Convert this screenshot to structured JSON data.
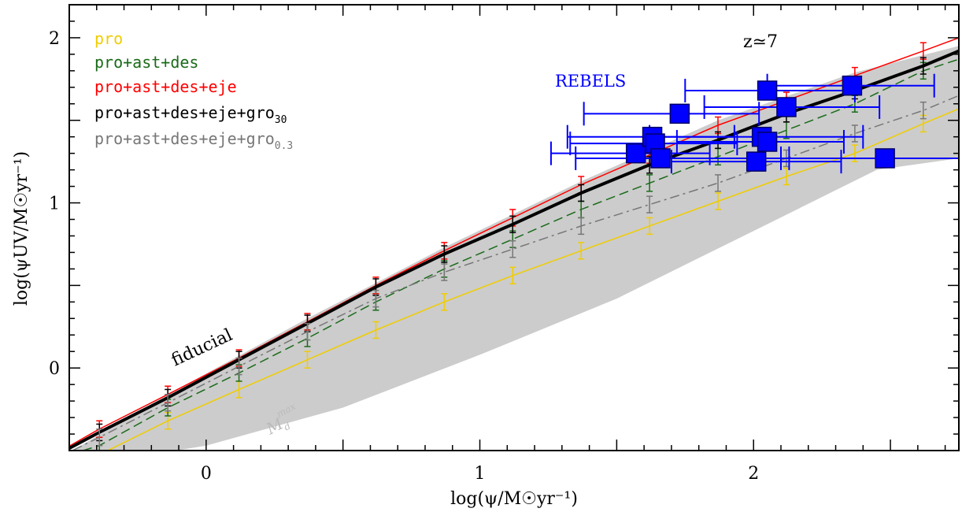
{
  "chart_data": {
    "type": "line",
    "xlabel": "log(ψ/M☉yr⁻¹)",
    "ylabel": "log(ψUV/M☉yr⁻¹)",
    "xlim": [
      -0.5,
      2.75
    ],
    "ylim": [
      -0.5,
      2.2
    ],
    "x_ticks": [
      0,
      1,
      2
    ],
    "x_tick_labels": [
      "0",
      "1",
      "2"
    ],
    "y_ticks": [
      0,
      1,
      2
    ],
    "y_tick_labels": [
      "0",
      "1",
      "2"
    ],
    "grid": false,
    "legend_position": "top-left",
    "legend": [
      {
        "text": "pro",
        "color": "#f0cd00"
      },
      {
        "text": "pro+ast+des",
        "color": "#1a6b1a"
      },
      {
        "text": "pro+ast+des+eje",
        "color": "#ff0000"
      },
      {
        "text": "pro+ast+des+eje+gro",
        "sub": "30",
        "color": "#000000"
      },
      {
        "text": "pro+ast+des+eje+gro",
        "sub": "0.3",
        "color": "#777777"
      }
    ],
    "annotations": {
      "redshift": "z≃7",
      "rebels": "REBELS",
      "fiducial": "fiducial",
      "mdmax_main": "M",
      "mdmax_sub": "d",
      "mdmax_sup": "max"
    },
    "shaded_band": {
      "color": "#cccccc",
      "upper": [
        [
          -0.55,
          -0.56
        ],
        [
          -0.14,
          -0.16
        ],
        [
          0.37,
          0.3
        ],
        [
          0.87,
          0.73
        ],
        [
          1.37,
          1.13
        ],
        [
          1.87,
          1.5
        ],
        [
          2.37,
          1.79
        ],
        [
          2.75,
          1.95
        ]
      ],
      "lower": [
        [
          -0.55,
          -0.62
        ],
        [
          0.0,
          -0.47
        ],
        [
          0.5,
          -0.24
        ],
        [
          1.0,
          0.08
        ],
        [
          1.5,
          0.42
        ],
        [
          2.0,
          0.83
        ],
        [
          2.45,
          1.2
        ],
        [
          2.75,
          1.27
        ]
      ]
    },
    "series": [
      {
        "name": "pro",
        "color": "#f0cd00",
        "dash": "solid",
        "width": 1.5,
        "x": [
          -0.55,
          -0.36,
          -0.14,
          0.12,
          0.37,
          0.62,
          0.87,
          1.12,
          1.37,
          1.62,
          1.87,
          2.12,
          2.37,
          2.62,
          2.75
        ],
        "y": [
          -0.62,
          -0.5,
          -0.32,
          -0.13,
          0.05,
          0.23,
          0.4,
          0.56,
          0.71,
          0.86,
          1.01,
          1.16,
          1.3,
          1.48,
          1.57
        ],
        "error_x": [
          -0.14,
          0.12,
          0.37,
          0.62,
          0.87,
          1.12,
          1.37,
          1.62,
          1.87,
          2.12,
          2.37,
          2.62
        ],
        "error_y": [
          -0.32,
          -0.13,
          0.05,
          0.23,
          0.4,
          0.56,
          0.71,
          0.86,
          1.01,
          1.16,
          1.3,
          1.48
        ],
        "error_size": 0.05
      },
      {
        "name": "pro+ast+des",
        "color": "#1a6b1a",
        "dash": "dashed",
        "width": 1.5,
        "x": [
          -0.55,
          -0.39,
          -0.14,
          0.12,
          0.37,
          0.62,
          0.87,
          1.12,
          1.37,
          1.62,
          1.87,
          2.12,
          2.37,
          2.62,
          2.75
        ],
        "y": [
          -0.55,
          -0.47,
          -0.24,
          -0.03,
          0.18,
          0.4,
          0.6,
          0.78,
          0.96,
          1.12,
          1.28,
          1.44,
          1.6,
          1.8,
          1.87
        ],
        "error_x": [
          -0.39,
          -0.14,
          0.12,
          0.37,
          0.62,
          0.87,
          1.12,
          1.37,
          1.62,
          1.87,
          2.12,
          2.37,
          2.62
        ],
        "error_y": [
          -0.47,
          -0.24,
          -0.03,
          0.18,
          0.4,
          0.6,
          0.78,
          0.96,
          1.12,
          1.28,
          1.44,
          1.6,
          1.8
        ],
        "error_size": 0.05
      },
      {
        "name": "pro+ast+des+eje",
        "color": "#ff0000",
        "dash": "solid",
        "width": 1.5,
        "x": [
          -0.55,
          -0.39,
          -0.14,
          0.12,
          0.37,
          0.62,
          0.87,
          1.12,
          1.37,
          1.62,
          1.87,
          2.12,
          2.37,
          2.62,
          2.75
        ],
        "y": [
          -0.52,
          -0.37,
          -0.16,
          0.06,
          0.28,
          0.5,
          0.71,
          0.91,
          1.11,
          1.29,
          1.47,
          1.62,
          1.77,
          1.92,
          2.0
        ],
        "error_x": [
          -0.39,
          -0.14,
          0.12,
          0.37,
          0.62,
          0.87,
          1.12,
          1.37,
          1.62,
          1.87,
          2.12,
          2.37,
          2.62
        ],
        "error_y": [
          -0.37,
          -0.16,
          0.06,
          0.28,
          0.5,
          0.71,
          0.91,
          1.11,
          1.29,
          1.47,
          1.62,
          1.77,
          1.92
        ],
        "error_size": 0.05
      },
      {
        "name": "pro+ast+des+eje+gro30",
        "color": "#000000",
        "dash": "solid",
        "width": 4,
        "x": [
          -0.55,
          -0.39,
          -0.14,
          0.12,
          0.37,
          0.62,
          0.87,
          1.12,
          1.37,
          1.62,
          1.87,
          2.12,
          2.37,
          2.62,
          2.75
        ],
        "y": [
          -0.53,
          -0.39,
          -0.18,
          0.05,
          0.27,
          0.49,
          0.69,
          0.87,
          1.06,
          1.23,
          1.38,
          1.54,
          1.68,
          1.83,
          1.92
        ],
        "error_x": [
          -0.39,
          -0.14,
          0.12,
          0.37,
          0.62,
          0.87,
          1.12,
          1.37,
          1.62,
          1.87,
          2.12,
          2.37,
          2.62
        ],
        "error_y": [
          -0.39,
          -0.18,
          0.05,
          0.27,
          0.49,
          0.69,
          0.87,
          1.06,
          1.23,
          1.38,
          1.54,
          1.68,
          1.83
        ],
        "error_size": 0.05
      },
      {
        "name": "pro+ast+des+eje+gro0.3",
        "color": "#777777",
        "dash": "dashdot",
        "width": 1.5,
        "x": [
          -0.55,
          -0.39,
          -0.14,
          0.12,
          0.37,
          0.62,
          0.87,
          1.12,
          1.37,
          1.62,
          1.87,
          2.12,
          2.37,
          2.62,
          2.75
        ],
        "y": [
          -0.55,
          -0.42,
          -0.21,
          0.01,
          0.22,
          0.42,
          0.58,
          0.72,
          0.86,
          0.99,
          1.12,
          1.27,
          1.42,
          1.56,
          1.65
        ],
        "error_x": [
          -0.39,
          -0.14,
          0.12,
          0.37,
          0.62,
          0.87,
          1.12,
          1.37,
          1.62,
          1.87,
          2.12,
          2.37,
          2.62
        ],
        "error_y": [
          -0.42,
          -0.21,
          0.01,
          0.22,
          0.42,
          0.58,
          0.72,
          0.86,
          0.99,
          1.12,
          1.27,
          1.42,
          1.56
        ],
        "error_size": 0.05
      }
    ],
    "rebels": {
      "name": "REBELS",
      "color": "#0000ff",
      "edge": "#000066",
      "points": [
        {
          "x": 1.57,
          "y": 1.3,
          "xmin": 1.26,
          "xmax": 1.84
        },
        {
          "x": 1.63,
          "y": 1.4,
          "xmin": 1.32,
          "xmax": 1.93
        },
        {
          "x": 1.64,
          "y": 1.36,
          "xmin": 1.33,
          "xmax": 1.94
        },
        {
          "x": 1.66,
          "y": 1.27,
          "xmin": 1.35,
          "xmax": 2.13
        },
        {
          "x": 1.73,
          "y": 1.54,
          "xmin": 1.38,
          "xmax": 2.02
        },
        {
          "x": 2.01,
          "y": 1.25,
          "xmin": 1.7,
          "xmax": 2.32
        },
        {
          "x": 2.03,
          "y": 1.4,
          "xmin": 1.62,
          "xmax": 2.4
        },
        {
          "x": 2.05,
          "y": 1.37,
          "xmin": 1.72,
          "xmax": 2.33
        },
        {
          "x": 2.05,
          "y": 1.68,
          "xmin": 1.75,
          "xmax": 2.37
        },
        {
          "x": 2.12,
          "y": 1.58,
          "xmin": 1.82,
          "xmax": 2.46
        },
        {
          "x": 2.36,
          "y": 1.71,
          "xmin": 2.05,
          "xmax": 2.66
        },
        {
          "x": 2.48,
          "y": 1.27,
          "xmin": 2.1,
          "xmax": 2.8
        }
      ]
    }
  }
}
